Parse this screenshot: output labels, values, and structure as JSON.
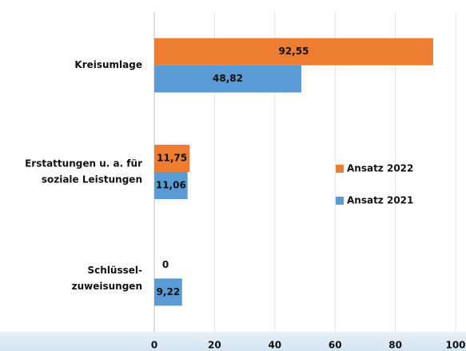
{
  "chart_data": {
    "type": "bar",
    "orientation": "horizontal",
    "categories": [
      [
        "Kreisumlage"
      ],
      [
        "Erstattungen u. a. für",
        "soziale Leistungen"
      ],
      [
        "Schlüssel-",
        "zuweisungen"
      ]
    ],
    "series": [
      {
        "name": "Ansatz 2022",
        "color": "#ED7D31",
        "values": [
          92.55,
          11.75,
          0
        ],
        "value_labels": [
          "92,55",
          "11,75",
          "0"
        ]
      },
      {
        "name": "Ansatz 2021",
        "color": "#5B9BD5",
        "values": [
          48.82,
          11.06,
          9.22
        ],
        "value_labels": [
          "48,82",
          "11,06",
          "9,22"
        ]
      }
    ],
    "xlim": [
      0,
      100
    ],
    "xticks": [
      0,
      20,
      40,
      60,
      80,
      100
    ],
    "grid": true,
    "legend": "right"
  }
}
